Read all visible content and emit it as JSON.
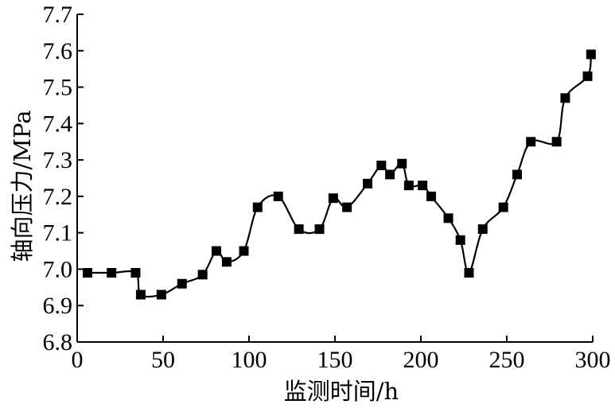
{
  "chart_data": {
    "type": "line",
    "title": "",
    "xlabel": "监测时间/h",
    "ylabel": "轴向压力/MPa",
    "xlim": [
      0,
      300
    ],
    "ylim": [
      6.8,
      7.7
    ],
    "xticks": [
      0,
      50,
      100,
      150,
      200,
      250,
      300
    ],
    "xtick_labels": [
      "0",
      "50",
      "100",
      "150",
      "200",
      "250",
      "300"
    ],
    "yticks": [
      6.8,
      6.9,
      7.0,
      7.1,
      7.2,
      7.3,
      7.4,
      7.5,
      7.6,
      7.7
    ],
    "ytick_labels": [
      "6.8",
      "6.9",
      "7.0",
      "7.1",
      "7.2",
      "7.3",
      "7.4",
      "7.5",
      "7.6",
      "7.7"
    ],
    "grid": false,
    "legend": "none",
    "line_color": "#000000",
    "marker": "square",
    "series": [
      {
        "x": [
          6,
          20,
          34,
          37,
          49,
          61,
          73,
          81,
          87,
          97,
          105,
          117,
          129,
          141,
          149,
          157,
          169,
          177,
          182,
          189,
          193,
          201,
          206,
          216,
          223,
          228,
          236,
          248,
          256,
          264,
          279,
          284,
          297,
          299
        ],
        "y": [
          6.99,
          6.99,
          6.99,
          6.93,
          6.93,
          6.96,
          6.985,
          7.05,
          7.02,
          7.05,
          7.17,
          7.2,
          7.11,
          7.11,
          7.195,
          7.17,
          7.235,
          7.285,
          7.26,
          7.29,
          7.23,
          7.23,
          7.2,
          7.14,
          7.08,
          6.99,
          7.11,
          7.17,
          7.26,
          7.35,
          7.35,
          7.47,
          7.53,
          7.59
        ]
      }
    ]
  }
}
